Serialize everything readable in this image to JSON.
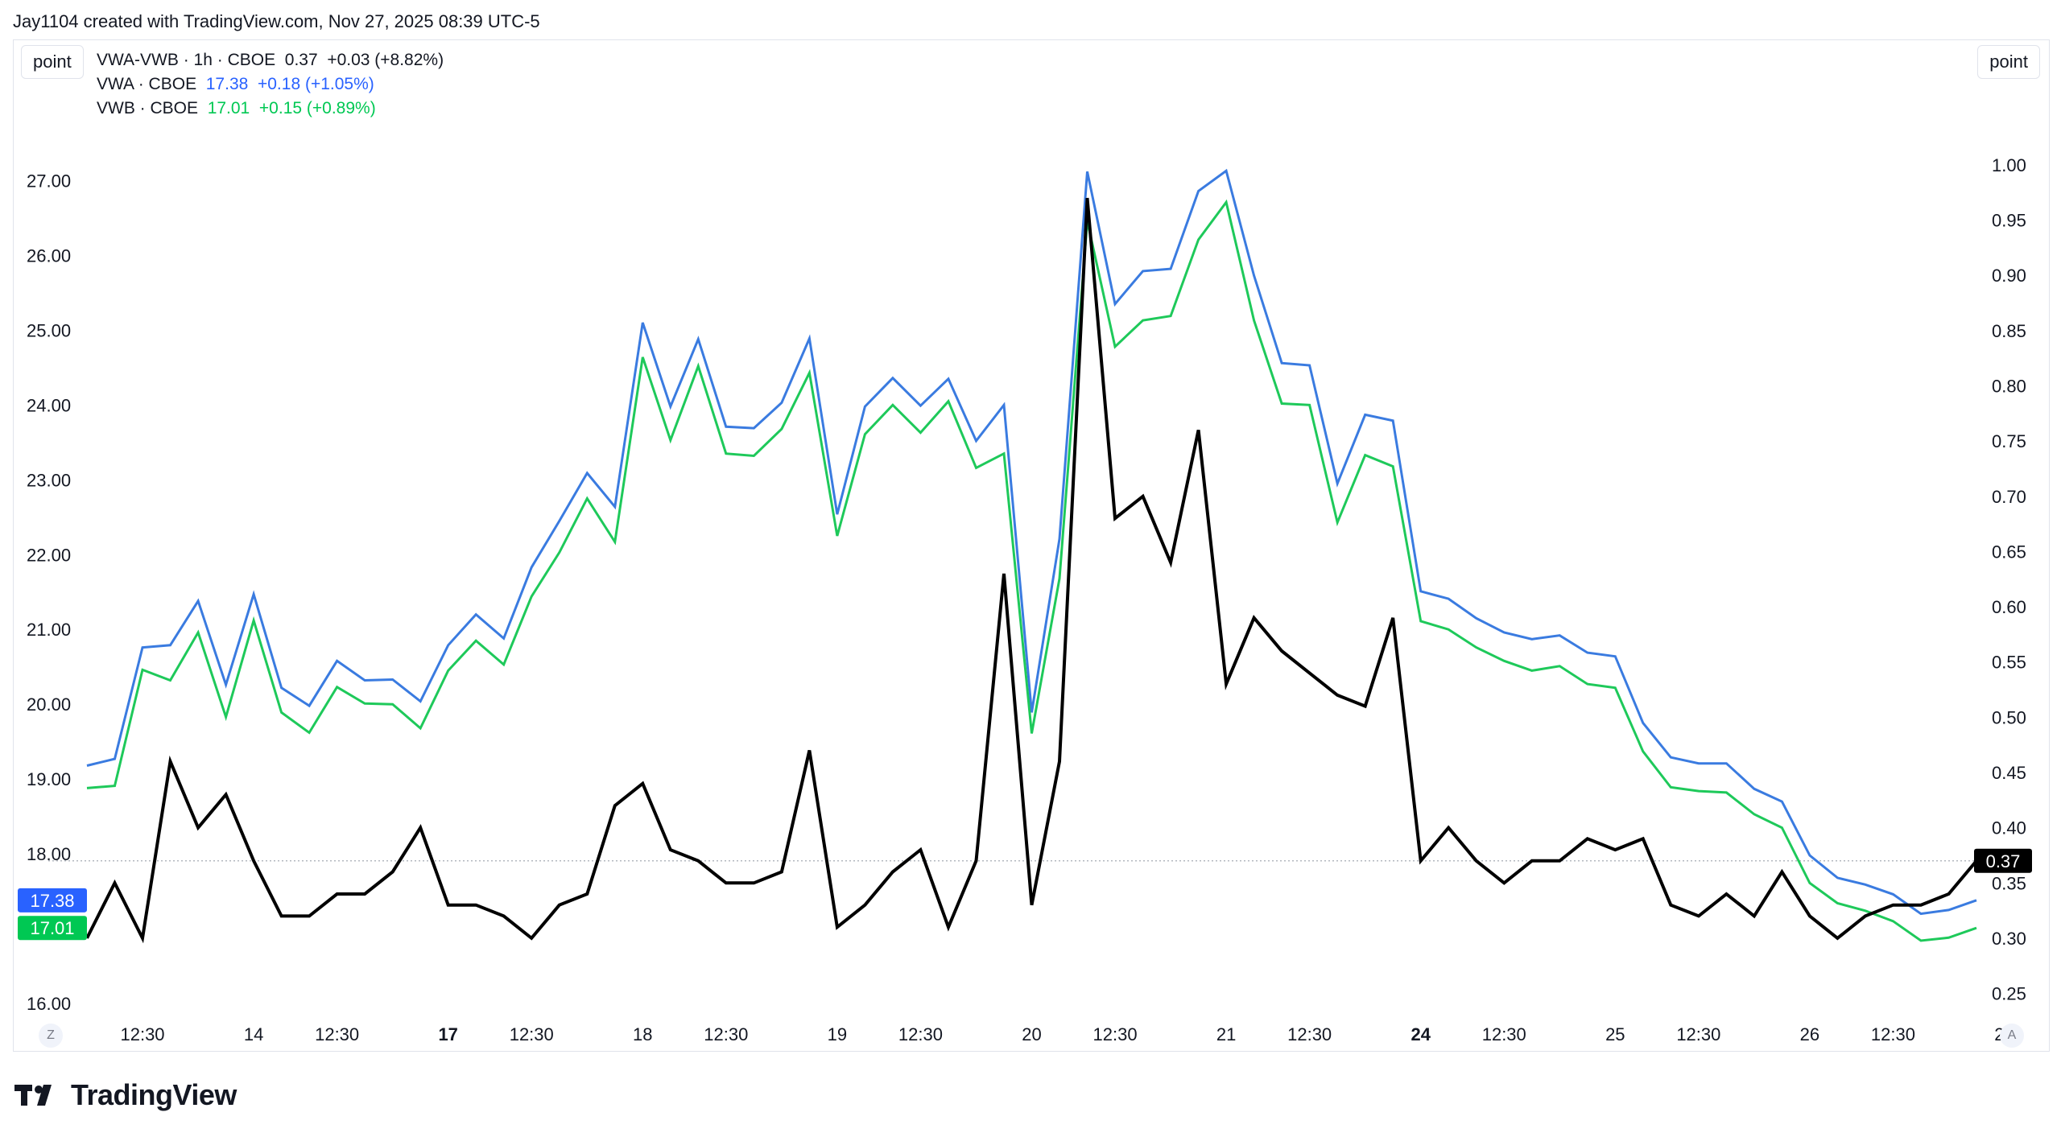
{
  "credit": "Jay1104 created with TradingView.com, Nov 27, 2025 08:39 UTC-5",
  "unit_left": "point",
  "unit_right": "point",
  "corner_left": "Z",
  "corner_right": "A",
  "brand": "TradingView",
  "colors": {
    "spread": "#000000",
    "vwa": "#2962ff",
    "vwb": "#00c853",
    "vwa_line": "#3a7be0",
    "vwb_line": "#1ec95a"
  },
  "legend": [
    {
      "name": "VWA-VWB · 1h · CBOE",
      "value": "0.37",
      "change": "+0.03 (+8.82%)",
      "color": "#131722"
    },
    {
      "name": "VWA · CBOE",
      "value": "17.38",
      "change": "+0.18 (+1.05%)",
      "color": "#2962ff"
    },
    {
      "name": "VWB · CBOE",
      "value": "17.01",
      "change": "+0.15 (+0.89%)",
      "color": "#00c853"
    }
  ],
  "price_labels": {
    "spread": "0.37",
    "vwa": "17.38",
    "vwb": "17.01"
  },
  "chart_data": {
    "type": "line",
    "x_ticks": [
      {
        "label": "12:30",
        "bold": false
      },
      {
        "label": "14",
        "bold": false
      },
      {
        "label": "12:30",
        "bold": false
      },
      {
        "label": "17",
        "bold": true
      },
      {
        "label": "12:30",
        "bold": false
      },
      {
        "label": "18",
        "bold": false
      },
      {
        "label": "12:30",
        "bold": false
      },
      {
        "label": "19",
        "bold": false
      },
      {
        "label": "12:30",
        "bold": false
      },
      {
        "label": "20",
        "bold": false
      },
      {
        "label": "12:30",
        "bold": false
      },
      {
        "label": "21",
        "bold": false
      },
      {
        "label": "12:30",
        "bold": false
      },
      {
        "label": "24",
        "bold": true
      },
      {
        "label": "12:30",
        "bold": false
      },
      {
        "label": "25",
        "bold": false
      },
      {
        "label": "12:30",
        "bold": false
      },
      {
        "label": "26",
        "bold": false
      },
      {
        "label": "12:30",
        "bold": false
      },
      {
        "label": "28",
        "bold": false
      }
    ],
    "x_tick_index": [
      2,
      6,
      9,
      13,
      16,
      20,
      23,
      27,
      30,
      34,
      37,
      41,
      44,
      48,
      51,
      55,
      58,
      62,
      65,
      69
    ],
    "left_axis": {
      "ticks": [
        "27.00",
        "26.00",
        "25.00",
        "24.00",
        "23.00",
        "22.00",
        "21.00",
        "20.00",
        "19.00",
        "18.00",
        "16.00"
      ],
      "tick_values": [
        27,
        26,
        25,
        24,
        23,
        22,
        21,
        20,
        19,
        18,
        16
      ],
      "range": [
        15.84,
        27.8
      ]
    },
    "right_axis": {
      "ticks": [
        "1.00",
        "0.95",
        "0.90",
        "0.85",
        "0.80",
        "0.75",
        "0.70",
        "0.65",
        "0.60",
        "0.55",
        "0.50",
        "0.45",
        "0.40",
        "0.35",
        "0.30",
        "0.25"
      ],
      "tick_values": [
        1.0,
        0.95,
        0.9,
        0.85,
        0.8,
        0.75,
        0.7,
        0.65,
        0.6,
        0.55,
        0.5,
        0.45,
        0.4,
        0.35,
        0.3,
        0.25
      ],
      "range": [
        0.23,
        1.04
      ]
    },
    "series": [
      {
        "name": "VWA-VWB",
        "axis": "right",
        "values": [
          0.3,
          0.35,
          0.3,
          0.46,
          0.4,
          0.43,
          0.37,
          0.32,
          0.32,
          0.34,
          0.34,
          0.36,
          0.4,
          0.33,
          0.33,
          0.32,
          0.3,
          0.33,
          0.34,
          0.42,
          0.44,
          0.38,
          0.37,
          0.35,
          0.35,
          0.36,
          0.47,
          0.31,
          0.33,
          0.36,
          0.38,
          0.31,
          0.37,
          0.63,
          0.33,
          0.46,
          0.97,
          0.68,
          0.7,
          0.64,
          0.76,
          0.53,
          0.59,
          0.56,
          0.54,
          0.52,
          0.51,
          0.59,
          0.37,
          0.4,
          0.37,
          0.35,
          0.37,
          0.37,
          0.39,
          0.38,
          0.39,
          0.33,
          0.32,
          0.34,
          0.32,
          0.36,
          0.32,
          0.3,
          0.32,
          0.33,
          0.33,
          0.34,
          0.37
        ]
      },
      {
        "name": "VWA",
        "axis": "left",
        "values": [
          19.18,
          19.27,
          20.76,
          20.79,
          21.38,
          20.26,
          21.47,
          20.22,
          19.98,
          20.58,
          20.32,
          20.33,
          20.04,
          20.79,
          21.2,
          20.88,
          21.83,
          22.45,
          23.09,
          22.64,
          25.1,
          23.98,
          24.88,
          23.71,
          23.69,
          24.03,
          24.89,
          22.54,
          23.98,
          24.36,
          23.99,
          24.35,
          23.52,
          24.0,
          19.89,
          22.21,
          27.12,
          25.35,
          25.79,
          25.82,
          26.86,
          27.13,
          25.73,
          24.56,
          24.53,
          22.95,
          23.87,
          23.79,
          21.51,
          21.41,
          21.15,
          20.96,
          20.87,
          20.92,
          20.69,
          20.64,
          19.75,
          19.29,
          19.21,
          19.21,
          18.87,
          18.7,
          17.98,
          17.68,
          17.59,
          17.46,
          17.2,
          17.25,
          17.38
        ]
      },
      {
        "name": "VWB",
        "axis": "left",
        "values": [
          18.88,
          18.91,
          20.46,
          20.32,
          20.96,
          19.83,
          21.12,
          19.89,
          19.62,
          20.23,
          20.01,
          20.0,
          19.68,
          20.45,
          20.85,
          20.53,
          21.44,
          22.03,
          22.75,
          22.17,
          24.64,
          23.53,
          24.52,
          23.35,
          23.32,
          23.68,
          24.43,
          22.25,
          23.61,
          24.0,
          23.63,
          24.05,
          23.16,
          23.35,
          19.61,
          21.68,
          26.46,
          24.78,
          25.13,
          25.19,
          26.21,
          26.71,
          25.13,
          24.02,
          24.0,
          22.43,
          23.33,
          23.18,
          21.11,
          21.0,
          20.76,
          20.58,
          20.45,
          20.51,
          20.27,
          20.22,
          19.37,
          18.89,
          18.84,
          18.82,
          18.53,
          18.35,
          17.61,
          17.34,
          17.24,
          17.1,
          16.84,
          16.88,
          17.01
        ]
      }
    ],
    "last_value_line": 0.37,
    "grid": false
  }
}
